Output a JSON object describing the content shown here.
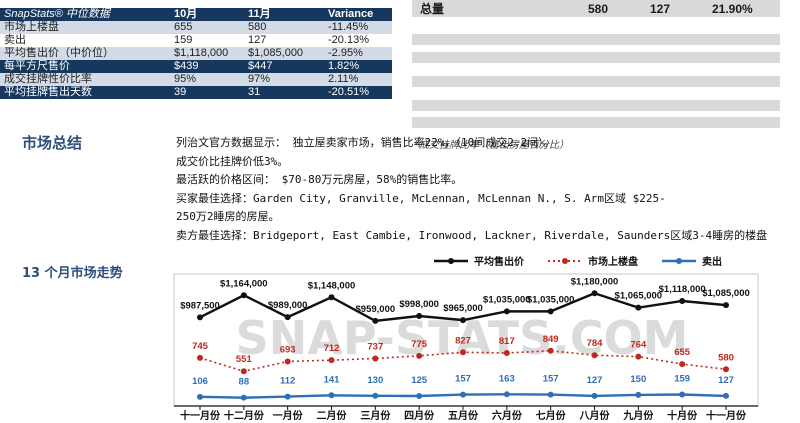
{
  "stats_table": {
    "headers": [
      "SnapStats® 中位数据",
      "10月",
      "11月",
      "Variance"
    ],
    "rows": [
      [
        "市场上楼盘",
        "655",
        "580",
        "-11.45%"
      ],
      [
        "卖出",
        "159",
        "127",
        "-20.13%"
      ],
      [
        "平均售出价（中价位）",
        "$1,118,000",
        "$1,085,000",
        "-2.95%"
      ],
      [
        "每平方尺售价",
        "$439",
        "$447",
        "1.82%"
      ],
      [
        "成交挂牌性价比率",
        "95%",
        "97%",
        "2.11%"
      ],
      [
        "平均挂牌售出天数",
        "39",
        "31",
        "-20.51%"
      ]
    ]
  },
  "summary_panel": {
    "label": "总量",
    "v1": "580",
    "v2": "127",
    "pct": "21.90%",
    "note": "*成交挂牌比率（售出房屋百分比）"
  },
  "market_summary": {
    "title": "市场总结",
    "lines": [
      "列治文官方数据显示： 独立屋卖家市场，销售比率22%，（10间成交2.2间）。",
      "成交价比挂牌价低3%。",
      "最活跃的价格区间： $70-80万元房屋，58%的销售比率。",
      "买家最佳选择：Garden City, Granville, McLennan, McLennan N., S. Arm区域 $225-",
      "250万2睡房的房屋。",
      "卖方最佳选择：Bridgeport, East Cambie, Ironwood, Lackner, Riverdale, Saunders区域3-4睡房的楼盘"
    ]
  },
  "chart_title": "13 个月市场走势",
  "watermark": "SNAP-STATS.COM",
  "colors": {
    "navy": "#17385e",
    "price": "#111111",
    "listings": "#c0281e",
    "sold": "#2e6fb5"
  },
  "chart_data": {
    "type": "line",
    "categories": [
      "十一月份",
      "十二月份",
      "一月份",
      "二月份",
      "三月份",
      "四月份",
      "五月份",
      "六月份",
      "七月份",
      "八月份",
      "九月份",
      "十月份",
      "十一月份"
    ],
    "series": [
      {
        "name": "平均售出价",
        "values": [
          987500,
          1164000,
          989000,
          1148000,
          959000,
          998000,
          965000,
          1035000,
          1035000,
          1180000,
          1065000,
          1118000,
          1085000
        ],
        "labels": [
          "$987,500",
          "$1,164,000",
          "$989,000",
          "$1,148,000",
          "$959,000",
          "$998,000",
          "$965,000",
          "$1,035,000",
          "$1,035,000",
          "$1,180,000",
          "$1,065,000",
          "$1,118,000",
          "$1,085,000"
        ]
      },
      {
        "name": "市场上楼盘",
        "values": [
          745,
          551,
          693,
          712,
          737,
          775,
          827,
          817,
          849,
          784,
          764,
          655,
          580
        ]
      },
      {
        "name": "卖出",
        "values": [
          106,
          88,
          112,
          141,
          130,
          125,
          157,
          163,
          157,
          127,
          150,
          159,
          127
        ]
      }
    ],
    "legend_position": "top-right"
  }
}
